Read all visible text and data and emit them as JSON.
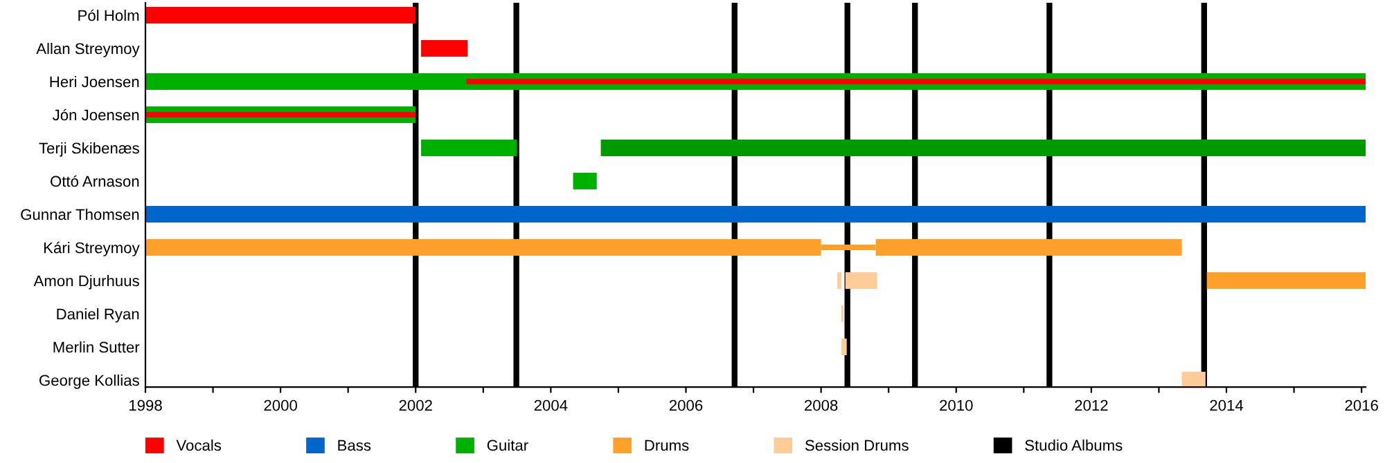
{
  "chart_data": {
    "type": "bar",
    "orientation": "horizontal",
    "categories": [
      "Pól Holm",
      "Allan Streymoy",
      "Heri Joensen",
      "Jón Joensen",
      "Terji Skibenæs",
      "Ottó Arnason",
      "Gunnar Thomsen",
      "Kári Streymoy",
      "Amon Djurhuus",
      "Daniel Ryan",
      "Merlin Sutter",
      "George Kollias"
    ],
    "series": [
      {
        "name": "Vocals",
        "color": "#ff0000",
        "values": [
          4.0,
          0.69,
          null,
          null,
          null,
          null,
          null,
          null,
          null,
          null,
          null,
          null
        ],
        "base": [
          1998,
          2002.08,
          null,
          null,
          null,
          null,
          null,
          null,
          null,
          null,
          null,
          null
        ]
      },
      {
        "name": "Bass",
        "color": "#0066cc",
        "values": [
          null,
          null,
          null,
          null,
          null,
          null,
          18.06,
          null,
          null,
          null,
          null,
          null
        ],
        "base": [
          null,
          null,
          null,
          null,
          null,
          null,
          1998,
          null,
          null,
          null,
          null,
          null
        ]
      },
      {
        "name": "Guitar",
        "color": "#00b000",
        "values": [
          null,
          null,
          18.06,
          4.0,
          1.42,
          0.35,
          null,
          null,
          null,
          null,
          null,
          null
        ],
        "base": [
          null,
          null,
          1998,
          1998,
          2002.08,
          2004.33,
          null,
          null,
          null,
          null,
          null,
          null
        ]
      },
      {
        "color": "#009900",
        "values": [
          null,
          null,
          null,
          null,
          15.32,
          null,
          null,
          null,
          null,
          null,
          null,
          null
        ],
        "base": [
          null,
          null,
          null,
          null,
          2004.74,
          null,
          null,
          null,
          null,
          null,
          null,
          null
        ]
      },
      {
        "name": "Drums",
        "color": "#ffa02a",
        "values": [
          null,
          null,
          null,
          null,
          null,
          null,
          null,
          10.0,
          2.35,
          null,
          null,
          null
        ],
        "base": [
          null,
          null,
          null,
          null,
          null,
          null,
          null,
          1998,
          2013.71,
          null,
          null,
          null
        ]
      },
      {
        "color": "#ffa02a",
        "values": [
          null,
          null,
          null,
          null,
          null,
          null,
          null,
          0.81,
          null,
          null,
          null,
          null
        ],
        "base": [
          null,
          null,
          null,
          null,
          null,
          null,
          null,
          2008.0,
          null,
          null,
          null,
          null
        ]
      },
      {
        "color": "#ffa02a",
        "values": [
          null,
          null,
          null,
          null,
          null,
          null,
          null,
          4.53,
          null,
          null,
          null,
          null
        ],
        "base": [
          null,
          null,
          null,
          null,
          null,
          null,
          null,
          2008.81,
          null,
          null,
          null,
          null
        ]
      },
      {
        "name": "Session Drums",
        "color": "#ffcc99",
        "values": [
          null,
          null,
          null,
          null,
          null,
          null,
          null,
          null,
          0.06,
          0.03,
          0.08,
          0.35
        ],
        "base": [
          null,
          null,
          null,
          null,
          null,
          null,
          null,
          null,
          2008.24,
          2008.3,
          2008.3,
          2013.34
        ]
      },
      {
        "color": "#ffcc99",
        "values": [
          null,
          null,
          null,
          null,
          null,
          null,
          null,
          null,
          0.47,
          null,
          null,
          null
        ],
        "base": [
          null,
          null,
          null,
          null,
          null,
          null,
          null,
          null,
          2008.36,
          null,
          null,
          null
        ]
      },
      {
        "color": "#ff0000",
        "values": [
          null,
          null,
          13.31,
          4.0,
          null,
          null,
          null,
          null,
          null,
          null,
          null,
          null
        ],
        "base": [
          null,
          null,
          2002.75,
          1998,
          null,
          null,
          null,
          null,
          null,
          null,
          null,
          null
        ]
      }
    ],
    "ref_lines": [
      {
        "axis": "x",
        "value": 2002.0,
        "label": "Studio Albums",
        "color": "#000000"
      },
      {
        "axis": "x",
        "value": 2003.49,
        "color": "#000000"
      },
      {
        "axis": "x",
        "value": 2006.72,
        "color": "#000000"
      },
      {
        "axis": "x",
        "value": 2008.39,
        "color": "#000000"
      },
      {
        "axis": "x",
        "value": 2009.39,
        "color": "#000000"
      },
      {
        "axis": "x",
        "value": 2011.38,
        "color": "#000000"
      },
      {
        "axis": "x",
        "value": 2013.67,
        "color": "#000000"
      }
    ],
    "xlim": [
      1998,
      2016.06
    ],
    "xticks": [
      1998,
      {
        "value": 1999,
        "label": null
      },
      2000,
      {
        "value": 2001,
        "label": null
      },
      2002,
      {
        "value": 2003,
        "label": null
      },
      2004,
      {
        "value": 2005,
        "label": null
      },
      2006,
      {
        "value": 2007,
        "label": null
      },
      2008,
      {
        "value": 2009,
        "label": null
      },
      2010,
      {
        "value": 2011,
        "label": null
      },
      2012,
      {
        "value": 2013,
        "label": null
      },
      2014,
      {
        "value": 2015,
        "label": null
      },
      2016
    ],
    "grid": false,
    "legend": "bottom"
  }
}
